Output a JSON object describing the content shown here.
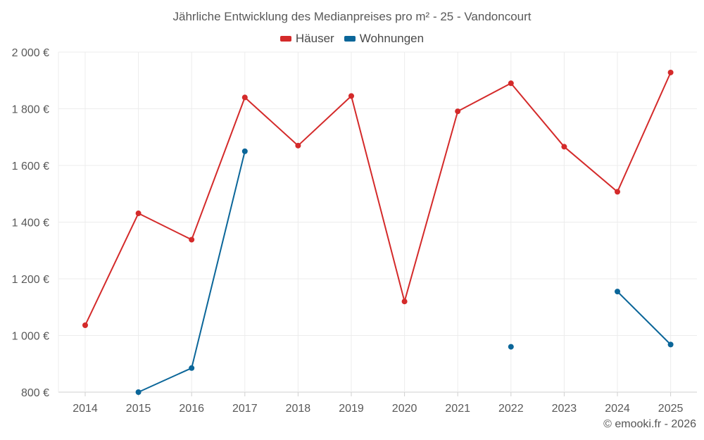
{
  "colors": {
    "houses": "#d42a2a",
    "apartments": "#0b6699",
    "grid": "#ececec",
    "axis": "#cfcfcf",
    "text": "#595959"
  },
  "copyright": "© emooki.fr - 2026",
  "chart_data": {
    "type": "line",
    "title": "Jährliche Entwicklung des Medianpreises pro m² - 25 - Vandoncourt",
    "xlabel": "",
    "ylabel": "",
    "x": [
      "2014",
      "2015",
      "2016",
      "2017",
      "2018",
      "2019",
      "2020",
      "2021",
      "2022",
      "2023",
      "2024",
      "2025"
    ],
    "ylim": [
      800,
      2000
    ],
    "yticks": [
      800,
      1000,
      1200,
      1400,
      1600,
      1800,
      2000
    ],
    "ytick_labels": [
      "800 €",
      "1 000 €",
      "1 200 €",
      "1 400 €",
      "1 600 €",
      "1 800 €",
      "2 000 €"
    ],
    "legend_position": "top-center",
    "grid": true,
    "series": [
      {
        "name": "Häuser",
        "color_key": "houses",
        "values": [
          1036,
          1431,
          1338,
          1840,
          1670,
          1845,
          1120,
          1791,
          1890,
          1666,
          1507,
          1928
        ]
      },
      {
        "name": "Wohnungen",
        "color_key": "apartments",
        "values": [
          null,
          800,
          885,
          1650,
          null,
          null,
          null,
          null,
          960,
          null,
          1155,
          968
        ]
      }
    ]
  }
}
